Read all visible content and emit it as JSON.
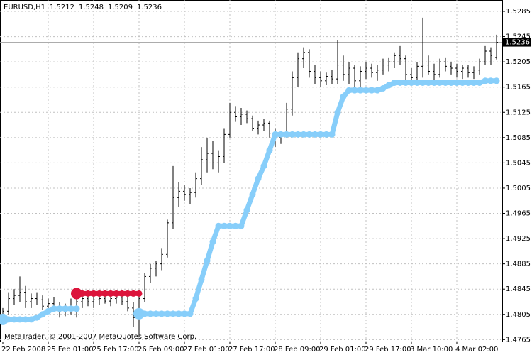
{
  "chart_data": {
    "type": "ohlc",
    "title": "EURUSD,H1",
    "footer": "MetaTrader, © 2001-2007 MetaQuotes Software Corp.",
    "categories": [
      "22 Feb 2008",
      null,
      null,
      null,
      null,
      null,
      null,
      null,
      "25 Feb 01:00",
      null,
      null,
      null,
      null,
      null,
      null,
      null,
      "25 Feb 17:00",
      null,
      null,
      null,
      null,
      null,
      null,
      null,
      "26 Feb 09:00",
      null,
      null,
      null,
      null,
      null,
      null,
      null,
      "27 Feb 01:00",
      null,
      null,
      null,
      null,
      null,
      null,
      null,
      "27 Feb 17:00",
      null,
      null,
      null,
      null,
      null,
      null,
      null,
      "28 Feb 09:00",
      null,
      null,
      null,
      null,
      null,
      null,
      null,
      "29 Feb 01:00",
      null,
      null,
      null,
      null,
      null,
      null,
      null,
      "29 Feb 17:00",
      null,
      null,
      null,
      null,
      null,
      null,
      null,
      "3 Mar 10:00",
      null,
      null,
      null,
      null,
      null,
      null,
      null,
      "4 Mar 02:00",
      null,
      null,
      null,
      null,
      null,
      null,
      null
    ],
    "open": [
      1.4805,
      1.481,
      1.483,
      1.4835,
      1.484,
      1.4825,
      1.483,
      1.4828,
      1.4818,
      1.4822,
      1.4815,
      1.481,
      1.4818,
      1.4812,
      1.4825,
      1.483,
      1.4825,
      1.4828,
      1.483,
      1.4826,
      1.483,
      1.4832,
      1.4825,
      1.4815,
      1.48,
      1.483,
      1.4865,
      1.4878,
      1.4885,
      1.49,
      1.495,
      1.499,
      1.5,
      1.4995,
      1.4998,
      1.502,
      1.505,
      1.506,
      1.5045,
      1.5055,
      1.509,
      1.5125,
      1.5118,
      1.5122,
      1.5115,
      1.51,
      1.5105,
      1.5108,
      1.5092,
      1.5085,
      1.509,
      1.513,
      1.518,
      1.521,
      1.522,
      1.519,
      1.518,
      1.5175,
      1.5182,
      1.5178,
      1.52,
      1.5185,
      1.5195,
      1.5175,
      1.519,
      1.5195,
      1.5188,
      1.5192,
      1.52,
      1.5205,
      1.5215,
      1.521,
      1.5185,
      1.518,
      1.5198,
      1.52,
      1.519,
      1.5185,
      1.5205,
      1.5198,
      1.5195,
      1.519,
      1.5195,
      1.5188,
      1.5192,
      1.5205,
      1.5222,
      1.5212
    ],
    "high": [
      1.4815,
      1.484,
      1.4845,
      1.4865,
      1.485,
      1.4838,
      1.484,
      1.4835,
      1.483,
      1.4832,
      1.4825,
      1.4822,
      1.483,
      1.483,
      1.484,
      1.4838,
      1.4835,
      1.4836,
      1.4838,
      1.4834,
      1.484,
      1.4838,
      1.4835,
      1.4825,
      1.4835,
      1.487,
      1.4885,
      1.489,
      1.491,
      1.4955,
      1.504,
      1.5015,
      1.501,
      1.5005,
      1.503,
      1.507,
      1.5085,
      1.508,
      1.5065,
      1.51,
      1.514,
      1.5135,
      1.5132,
      1.5128,
      1.512,
      1.5112,
      1.5115,
      1.5112,
      1.51,
      1.5095,
      1.514,
      1.519,
      1.522,
      1.5228,
      1.5225,
      1.52,
      1.519,
      1.5188,
      1.5192,
      1.524,
      1.5215,
      1.5205,
      1.52,
      1.5198,
      1.5205,
      1.5202,
      1.52,
      1.521,
      1.5212,
      1.522,
      1.523,
      1.5215,
      1.5195,
      1.5205,
      1.5275,
      1.5215,
      1.5202,
      1.521,
      1.5212,
      1.5205,
      1.5202,
      1.52,
      1.52,
      1.5198,
      1.521,
      1.523,
      1.5228,
      1.5248
    ],
    "low": [
      1.479,
      1.4805,
      1.482,
      1.4825,
      1.4815,
      1.4815,
      1.482,
      1.4812,
      1.4808,
      1.4812,
      1.48,
      1.4802,
      1.4805,
      1.48,
      1.4815,
      1.4818,
      1.4815,
      1.482,
      1.4822,
      1.4818,
      1.4822,
      1.482,
      1.481,
      1.4785,
      1.4772,
      1.4825,
      1.4855,
      1.4865,
      1.4875,
      1.4895,
      1.494,
      1.4975,
      1.4985,
      1.498,
      1.499,
      1.501,
      1.503,
      1.5035,
      1.503,
      1.5045,
      1.5085,
      1.511,
      1.5105,
      1.5108,
      1.5095,
      1.509,
      1.5095,
      1.5085,
      1.507,
      1.5075,
      1.5085,
      1.512,
      1.5165,
      1.5195,
      1.518,
      1.517,
      1.5165,
      1.5168,
      1.517,
      1.517,
      1.5175,
      1.517,
      1.5158,
      1.5165,
      1.5178,
      1.518,
      1.5175,
      1.5185,
      1.519,
      1.5195,
      1.52,
      1.5175,
      1.517,
      1.5175,
      1.518,
      1.5185,
      1.5175,
      1.518,
      1.519,
      1.5185,
      1.518,
      1.5178,
      1.518,
      1.5178,
      1.5185,
      1.52,
      1.52,
      1.5209
    ],
    "close": [
      1.481,
      1.483,
      1.4835,
      1.484,
      1.4825,
      1.483,
      1.4828,
      1.4818,
      1.4822,
      1.4815,
      1.481,
      1.4818,
      1.4812,
      1.4825,
      1.483,
      1.4825,
      1.4828,
      1.483,
      1.4826,
      1.483,
      1.4832,
      1.4825,
      1.4815,
      1.48,
      1.483,
      1.4865,
      1.4878,
      1.4885,
      1.49,
      1.495,
      1.499,
      1.5,
      1.4995,
      1.4998,
      1.502,
      1.505,
      1.506,
      1.5045,
      1.5055,
      1.509,
      1.5125,
      1.5118,
      1.5122,
      1.5115,
      1.51,
      1.5105,
      1.5108,
      1.5092,
      1.5085,
      1.509,
      1.513,
      1.518,
      1.521,
      1.522,
      1.519,
      1.518,
      1.5175,
      1.5182,
      1.5178,
      1.52,
      1.5185,
      1.5195,
      1.5175,
      1.519,
      1.5195,
      1.5188,
      1.5192,
      1.52,
      1.5205,
      1.5215,
      1.521,
      1.5185,
      1.518,
      1.5198,
      1.52,
      1.519,
      1.5185,
      1.5205,
      1.5198,
      1.5195,
      1.519,
      1.5195,
      1.5188,
      1.5192,
      1.5205,
      1.5222,
      1.5215,
      1.5236
    ],
    "bar_color": "#000000",
    "indicators": [
      {
        "color": "#87cefa",
        "values": [
          1.4797,
          1.4797,
          1.4797,
          1.4797,
          1.4797,
          1.4797,
          1.48,
          1.4805,
          1.481,
          1.4814,
          1.4814,
          1.4814,
          1.4814,
          1.4814,
          null,
          null,
          null,
          null,
          null,
          null,
          null,
          null,
          null,
          null,
          1.4806,
          1.4806,
          1.4806,
          1.4806,
          1.4806,
          1.4806,
          1.4806,
          1.4806,
          1.4806,
          1.4806,
          1.483,
          1.486,
          1.489,
          1.492,
          1.4945,
          1.4945,
          1.4945,
          1.4945,
          1.4945,
          1.497,
          1.4995,
          1.502,
          1.504,
          1.5065,
          1.509,
          1.509,
          1.509,
          1.509,
          1.509,
          1.509,
          1.509,
          1.509,
          1.509,
          1.509,
          1.509,
          1.5125,
          1.515,
          1.516,
          1.516,
          1.516,
          1.516,
          1.516,
          1.516,
          1.5163,
          1.5168,
          1.5172,
          1.5172,
          1.5172,
          1.5172,
          1.5172,
          1.5172,
          1.5172,
          1.5172,
          1.5172,
          1.5172,
          1.5172,
          1.5172,
          1.5172,
          1.5172,
          1.5172,
          1.5172,
          1.5175,
          1.5175,
          1.5175
        ]
      },
      {
        "color": "#dc143c",
        "values": [
          null,
          null,
          null,
          null,
          null,
          null,
          null,
          null,
          null,
          null,
          null,
          null,
          null,
          1.4838,
          1.4838,
          1.4838,
          1.4838,
          1.4838,
          1.4838,
          1.4838,
          1.4838,
          1.4838,
          1.4838,
          1.4838,
          1.4838,
          null,
          null,
          null,
          null,
          null,
          null,
          null,
          null,
          null,
          null,
          null,
          null,
          null,
          null,
          null,
          null,
          null,
          null,
          null,
          null,
          null,
          null,
          null,
          null,
          null,
          null,
          null,
          null,
          null,
          null,
          null,
          null,
          null,
          null,
          null,
          null,
          null,
          null,
          null,
          null,
          null,
          null,
          null,
          null,
          null,
          null,
          null,
          null,
          null,
          null,
          null,
          null,
          null,
          null,
          null,
          null,
          null,
          null,
          null,
          null,
          null,
          null,
          null
        ]
      }
    ],
    "ylim": [
      1.4762,
      1.5303
    ],
    "yticks": [
      1.5285,
      1.5245,
      1.5205,
      1.5165,
      1.5125,
      1.5085,
      1.5045,
      1.5005,
      1.4965,
      1.4925,
      1.4885,
      1.4845,
      1.4805,
      1.4765
    ],
    "grid": true
  }
}
